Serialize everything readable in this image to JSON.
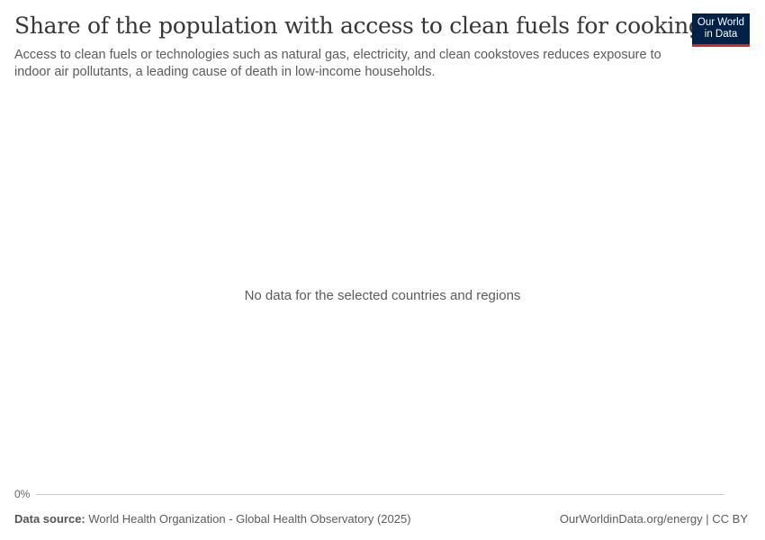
{
  "header": {
    "title": "Share of the population with access to clean fuels for cooking",
    "subtitle": "Access to clean fuels or technologies such as natural gas, electricity, and clean cookstoves reduces exposure to indoor air pollutants, a leading cause of death in low-income households.",
    "logo_line1": "Our World",
    "logo_line2": "in Data"
  },
  "chart_data": {
    "type": "line",
    "title": "Share of the population with access to clean fuels for cooking",
    "series": [],
    "y_tick_labels": [
      "0%"
    ],
    "no_data_message": "No data for the selected countries and regions",
    "colors": {
      "axis": "#cccccc",
      "logo_bg": "#002147",
      "logo_accent": "#ce261e"
    }
  },
  "footer": {
    "source_label": "Data source:",
    "source_text": "World Health Organization - Global Health Observatory (2025)",
    "link": "OurWorldinData.org/energy",
    "license": "CC BY"
  }
}
